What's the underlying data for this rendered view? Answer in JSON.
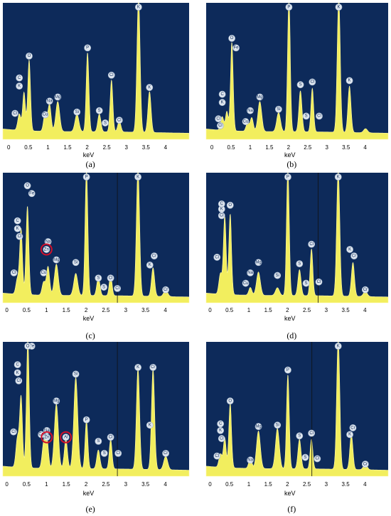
{
  "chart_data": [
    {
      "type": "area",
      "label": "(a)",
      "xlabel": "keV",
      "xlim": [
        -0.15,
        4.6
      ],
      "ylim": [
        0,
        100
      ],
      "xticks": [
        0,
        0.5,
        1,
        1.5,
        2,
        2.5,
        3,
        3.5,
        4
      ],
      "xtick_labels": [
        "0",
        "0.5",
        "1",
        "1.5",
        "2",
        "2.5",
        "3",
        "3.5",
        "4"
      ],
      "marker": null,
      "peaks": [
        {
          "x": 0.27,
          "h": 12,
          "w": 0.04
        },
        {
          "x": 0.39,
          "h": 28,
          "w": 0.035
        },
        {
          "x": 0.52,
          "h": 52,
          "w": 0.035
        },
        {
          "x": 0.93,
          "h": 14,
          "w": 0.04
        },
        {
          "x": 1.04,
          "h": 20,
          "w": 0.04
        },
        {
          "x": 1.25,
          "h": 22,
          "w": 0.05
        },
        {
          "x": 1.74,
          "h": 13,
          "w": 0.05
        },
        {
          "x": 2.01,
          "h": 58,
          "w": 0.035
        },
        {
          "x": 2.31,
          "h": 13,
          "w": 0.04
        },
        {
          "x": 2.62,
          "h": 38,
          "w": 0.035
        },
        {
          "x": 2.82,
          "h": 8,
          "w": 0.04
        },
        {
          "x": 3.31,
          "h": 99,
          "w": 0.04
        },
        {
          "x": 3.59,
          "h": 30,
          "w": 0.04
        }
      ],
      "labels": [
        {
          "text": "O",
          "x": 0.52,
          "v": 61
        },
        {
          "text": "C",
          "x": 0.27,
          "v": 45
        },
        {
          "text": "K",
          "x": 0.27,
          "v": 39
        },
        {
          "text": "Cl",
          "x": 0.16,
          "v": 19
        },
        {
          "text": "Na",
          "x": 1.04,
          "v": 28
        },
        {
          "text": "Mg",
          "x": 1.25,
          "v": 31
        },
        {
          "text": "Cu",
          "x": 0.93,
          "v": 18
        },
        {
          "text": "Si",
          "x": 1.74,
          "v": 20
        },
        {
          "text": "P",
          "x": 2.01,
          "v": 67
        },
        {
          "text": "Cl",
          "x": 2.62,
          "v": 47
        },
        {
          "text": "S",
          "x": 2.31,
          "v": 21
        },
        {
          "text": "S",
          "x": 2.46,
          "v": 12
        },
        {
          "text": "Cl",
          "x": 2.82,
          "v": 14
        },
        {
          "text": "K",
          "x": 3.31,
          "v": 109
        },
        {
          "text": "K",
          "x": 3.59,
          "v": 38
        }
      ],
      "rings": []
    },
    {
      "type": "area",
      "label": "(b)",
      "xlabel": "keV",
      "xlim": [
        -0.15,
        4.6
      ],
      "ylim": [
        0,
        100
      ],
      "xticks": [
        0,
        0.5,
        1,
        1.5,
        2,
        2.5,
        3,
        3.5,
        4
      ],
      "xtick_labels": [
        "0",
        "0.5",
        "1",
        "1.5",
        "2",
        "2.5",
        "3",
        "3.5",
        "4"
      ],
      "marker": null,
      "peaks": [
        {
          "x": 0.27,
          "h": 10,
          "w": 0.04
        },
        {
          "x": 0.39,
          "h": 14,
          "w": 0.035
        },
        {
          "x": 0.52,
          "h": 65,
          "w": 0.035
        },
        {
          "x": 0.93,
          "h": 6,
          "w": 0.04
        },
        {
          "x": 1.04,
          "h": 10,
          "w": 0.04
        },
        {
          "x": 1.25,
          "h": 22,
          "w": 0.05
        },
        {
          "x": 1.74,
          "h": 14,
          "w": 0.05
        },
        {
          "x": 2.01,
          "h": 99,
          "w": 0.035
        },
        {
          "x": 2.31,
          "h": 30,
          "w": 0.04
        },
        {
          "x": 2.62,
          "h": 32,
          "w": 0.035
        },
        {
          "x": 3.31,
          "h": 99,
          "w": 0.04
        },
        {
          "x": 3.59,
          "h": 34,
          "w": 0.04
        },
        {
          "x": 4.01,
          "h": 3,
          "w": 0.05
        }
      ],
      "labels": [
        {
          "text": "O",
          "x": 0.52,
          "v": 74
        },
        {
          "text": "Fe",
          "x": 0.63,
          "v": 67
        },
        {
          "text": "C",
          "x": 0.27,
          "v": 33
        },
        {
          "text": "K",
          "x": 0.27,
          "v": 27
        },
        {
          "text": "Cl",
          "x": 0.17,
          "v": 15
        },
        {
          "text": "Cl",
          "x": 0.22,
          "v": 10
        },
        {
          "text": "Na",
          "x": 1.0,
          "v": 21
        },
        {
          "text": "Cu",
          "x": 0.88,
          "v": 13
        },
        {
          "text": "Mg",
          "x": 1.25,
          "v": 31
        },
        {
          "text": "Si",
          "x": 1.74,
          "v": 22
        },
        {
          "text": "P",
          "x": 2.01,
          "v": 108
        },
        {
          "text": "S",
          "x": 2.31,
          "v": 40
        },
        {
          "text": "Cl",
          "x": 2.62,
          "v": 42
        },
        {
          "text": "S",
          "x": 2.46,
          "v": 17
        },
        {
          "text": "Cl",
          "x": 2.8,
          "v": 17
        },
        {
          "text": "K",
          "x": 3.31,
          "v": 108
        },
        {
          "text": "K",
          "x": 3.59,
          "v": 43
        }
      ],
      "rings": []
    },
    {
      "type": "area",
      "label": "(c)",
      "xlabel": "keV",
      "xlim": [
        -0.1,
        4.6
      ],
      "ylim": [
        0,
        100
      ],
      "xticks": [
        0,
        0.5,
        1,
        1.5,
        2,
        2.5,
        3,
        3.5,
        4
      ],
      "xtick_labels": [
        "0",
        "0.5",
        "1",
        "1.5",
        "2",
        "2.5",
        "3",
        "3.5",
        "4"
      ],
      "marker": 2.79,
      "peaks": [
        {
          "x": 0.27,
          "h": 12,
          "w": 0.04
        },
        {
          "x": 0.36,
          "h": 50,
          "w": 0.035
        },
        {
          "x": 0.52,
          "h": 68,
          "w": 0.035
        },
        {
          "x": 0.93,
          "h": 10,
          "w": 0.04
        },
        {
          "x": 1.04,
          "h": 22,
          "w": 0.04
        },
        {
          "x": 1.25,
          "h": 24,
          "w": 0.05
        },
        {
          "x": 1.74,
          "h": 17,
          "w": 0.05
        },
        {
          "x": 2.01,
          "h": 98,
          "w": 0.035
        },
        {
          "x": 2.31,
          "h": 14,
          "w": 0.04
        },
        {
          "x": 2.62,
          "h": 16,
          "w": 0.035
        },
        {
          "x": 3.31,
          "h": 98,
          "w": 0.04
        },
        {
          "x": 3.69,
          "h": 22,
          "w": 0.04
        },
        {
          "x": 4.01,
          "h": 5,
          "w": 0.05
        }
      ],
      "labels": [
        {
          "text": "O",
          "x": 0.52,
          "v": 90
        },
        {
          "text": "Fe",
          "x": 0.63,
          "v": 84
        },
        {
          "text": "C",
          "x": 0.27,
          "v": 63
        },
        {
          "text": "K",
          "x": 0.27,
          "v": 57
        },
        {
          "text": "Cl",
          "x": 0.32,
          "v": 51
        },
        {
          "text": "Na",
          "x": 1.04,
          "v": 47
        },
        {
          "text": "Zn",
          "x": 1.0,
          "v": 41
        },
        {
          "text": "Cu",
          "x": 0.93,
          "v": 23
        },
        {
          "text": "Cl",
          "x": 0.18,
          "v": 23
        },
        {
          "text": "Mg",
          "x": 1.25,
          "v": 33
        },
        {
          "text": "Si",
          "x": 1.74,
          "v": 31
        },
        {
          "text": "P",
          "x": 2.01,
          "v": 108
        },
        {
          "text": "S",
          "x": 2.31,
          "v": 19
        },
        {
          "text": "Cl",
          "x": 2.62,
          "v": 19
        },
        {
          "text": "S",
          "x": 2.45,
          "v": 12
        },
        {
          "text": "Cl",
          "x": 2.79,
          "v": 11
        },
        {
          "text": "K",
          "x": 3.31,
          "v": 108
        },
        {
          "text": "Cr",
          "x": 3.72,
          "v": 36
        },
        {
          "text": "K",
          "x": 3.61,
          "v": 29
        },
        {
          "text": "Cr",
          "x": 4.01,
          "v": 10
        }
      ],
      "rings": [
        {
          "x": 1.0,
          "v": 41
        }
      ]
    },
    {
      "type": "area",
      "label": "(d)",
      "xlabel": "keV",
      "xlim": [
        -0.1,
        4.6
      ],
      "ylim": [
        0,
        100
      ],
      "xticks": [
        0,
        0.5,
        1,
        1.5,
        2,
        2.5,
        3,
        3.5,
        4
      ],
      "xtick_labels": [
        "0",
        "0.5",
        "1",
        "1.5",
        "2",
        "2.5",
        "3",
        "3.5",
        "4"
      ],
      "marker": 2.79,
      "peaks": [
        {
          "x": 0.27,
          "h": 16,
          "w": 0.04
        },
        {
          "x": 0.38,
          "h": 60,
          "w": 0.035
        },
        {
          "x": 0.52,
          "h": 62,
          "w": 0.035
        },
        {
          "x": 1.04,
          "h": 6,
          "w": 0.04
        },
        {
          "x": 1.25,
          "h": 18,
          "w": 0.05
        },
        {
          "x": 1.74,
          "h": 6,
          "w": 0.05
        },
        {
          "x": 2.01,
          "h": 98,
          "w": 0.035
        },
        {
          "x": 2.31,
          "h": 20,
          "w": 0.04
        },
        {
          "x": 2.62,
          "h": 36,
          "w": 0.035
        },
        {
          "x": 3.31,
          "h": 98,
          "w": 0.04
        },
        {
          "x": 3.69,
          "h": 26,
          "w": 0.04
        },
        {
          "x": 4.01,
          "h": 4,
          "w": 0.05
        }
      ],
      "labels": [
        {
          "text": "C",
          "x": 0.3,
          "v": 76
        },
        {
          "text": "K",
          "x": 0.3,
          "v": 72
        },
        {
          "text": "Cl",
          "x": 0.3,
          "v": 67
        },
        {
          "text": "O",
          "x": 0.52,
          "v": 75
        },
        {
          "text": "Cl",
          "x": 0.18,
          "v": 35
        },
        {
          "text": "Na",
          "x": 1.04,
          "v": 23
        },
        {
          "text": "Cu",
          "x": 0.92,
          "v": 15
        },
        {
          "text": "Mg",
          "x": 1.25,
          "v": 31
        },
        {
          "text": "Si",
          "x": 1.74,
          "v": 21
        },
        {
          "text": "P",
          "x": 2.01,
          "v": 109
        },
        {
          "text": "S",
          "x": 2.31,
          "v": 30
        },
        {
          "text": "Cl",
          "x": 2.62,
          "v": 45
        },
        {
          "text": "S",
          "x": 2.48,
          "v": 15
        },
        {
          "text": "Cl",
          "x": 2.81,
          "v": 16
        },
        {
          "text": "K",
          "x": 3.31,
          "v": 109
        },
        {
          "text": "K",
          "x": 3.61,
          "v": 41
        },
        {
          "text": "Cr",
          "x": 3.72,
          "v": 36
        },
        {
          "text": "Cr",
          "x": 4.01,
          "v": 10
        }
      ],
      "rings": []
    },
    {
      "type": "area",
      "label": "(e)",
      "xlabel": "keV",
      "xlim": [
        -0.1,
        4.6
      ],
      "ylim": [
        0,
        100
      ],
      "xticks": [
        0,
        0.5,
        1,
        1.5,
        2,
        2.5,
        3,
        3.5,
        4
      ],
      "xtick_labels": [
        "0",
        "0.5",
        "1",
        "1.5",
        "2",
        "2.5",
        "3",
        "3.5",
        "4"
      ],
      "marker": 2.79,
      "peaks": [
        {
          "x": 0.27,
          "h": 22,
          "w": 0.04
        },
        {
          "x": 0.36,
          "h": 52,
          "w": 0.035
        },
        {
          "x": 0.53,
          "h": 96,
          "w": 0.035
        },
        {
          "x": 0.93,
          "h": 18,
          "w": 0.04
        },
        {
          "x": 1.01,
          "h": 22,
          "w": 0.04
        },
        {
          "x": 1.25,
          "h": 48,
          "w": 0.05
        },
        {
          "x": 1.49,
          "h": 22,
          "w": 0.04
        },
        {
          "x": 1.74,
          "h": 68,
          "w": 0.05
        },
        {
          "x": 2.01,
          "h": 36,
          "w": 0.035
        },
        {
          "x": 2.31,
          "h": 14,
          "w": 0.04
        },
        {
          "x": 2.62,
          "h": 22,
          "w": 0.035
        },
        {
          "x": 3.31,
          "h": 75,
          "w": 0.04
        },
        {
          "x": 3.69,
          "h": 75,
          "w": 0.04
        },
        {
          "x": 4.01,
          "h": 10,
          "w": 0.05
        }
      ],
      "labels": [
        {
          "text": "Fe",
          "x": 0.63,
          "v": 103
        },
        {
          "text": "O",
          "x": 0.53,
          "v": 97
        },
        {
          "text": "C",
          "x": 0.27,
          "v": 83
        },
        {
          "text": "K",
          "x": 0.27,
          "v": 77
        },
        {
          "text": "Cl",
          "x": 0.3,
          "v": 71
        },
        {
          "text": "Na",
          "x": 1.01,
          "v": 34
        },
        {
          "text": "Zn",
          "x": 1.01,
          "v": 29
        },
        {
          "text": "Al",
          "x": 1.49,
          "v": 29
        },
        {
          "text": "Cu",
          "x": 0.87,
          "v": 31
        },
        {
          "text": "Cl",
          "x": 0.17,
          "v": 33
        },
        {
          "text": "Mg",
          "x": 1.25,
          "v": 56
        },
        {
          "text": "Si",
          "x": 1.74,
          "v": 76
        },
        {
          "text": "P",
          "x": 2.01,
          "v": 42
        },
        {
          "text": "S",
          "x": 2.31,
          "v": 26
        },
        {
          "text": "Cl",
          "x": 2.62,
          "v": 29
        },
        {
          "text": "S",
          "x": 2.46,
          "v": 17
        },
        {
          "text": "Cl",
          "x": 2.81,
          "v": 17
        },
        {
          "text": "K",
          "x": 3.31,
          "v": 81
        },
        {
          "text": "Cr",
          "x": 3.69,
          "v": 81
        },
        {
          "text": "K",
          "x": 3.61,
          "v": 38
        },
        {
          "text": "Cr",
          "x": 4.01,
          "v": 17
        }
      ],
      "rings": [
        {
          "x": 1.01,
          "v": 29
        },
        {
          "x": 1.49,
          "v": 29
        }
      ]
    },
    {
      "type": "area",
      "label": "(f)",
      "xlabel": "keV",
      "xlim": [
        -0.1,
        4.6
      ],
      "ylim": [
        0,
        100
      ],
      "xticks": [
        0,
        0.5,
        1,
        1.5,
        2,
        2.5,
        3,
        3.5,
        4
      ],
      "xtick_labels": [
        "0",
        "0.5",
        "1",
        "1.5",
        "2",
        "2.5",
        "3",
        "3.5",
        "4"
      ],
      "marker": 2.63,
      "peaks": [
        {
          "x": 0.27,
          "h": 10,
          "w": 0.04
        },
        {
          "x": 0.38,
          "h": 22,
          "w": 0.035
        },
        {
          "x": 0.52,
          "h": 48,
          "w": 0.035
        },
        {
          "x": 1.04,
          "h": 8,
          "w": 0.04
        },
        {
          "x": 1.25,
          "h": 28,
          "w": 0.05
        },
        {
          "x": 1.74,
          "h": 30,
          "w": 0.05
        },
        {
          "x": 2.01,
          "h": 70,
          "w": 0.035
        },
        {
          "x": 2.31,
          "h": 22,
          "w": 0.04
        },
        {
          "x": 2.62,
          "h": 22,
          "w": 0.035
        },
        {
          "x": 3.31,
          "h": 98,
          "w": 0.04
        },
        {
          "x": 3.65,
          "h": 26,
          "w": 0.04
        },
        {
          "x": 4.01,
          "h": 4,
          "w": 0.05
        }
      ],
      "labels": [
        {
          "text": "O",
          "x": 0.52,
          "v": 56
        },
        {
          "text": "C",
          "x": 0.27,
          "v": 39
        },
        {
          "text": "K",
          "x": 0.27,
          "v": 34
        },
        {
          "text": "Cl",
          "x": 0.3,
          "v": 28
        },
        {
          "text": "Cl",
          "x": 0.18,
          "v": 15
        },
        {
          "text": "Na",
          "x": 1.04,
          "v": 12
        },
        {
          "text": "Mg",
          "x": 1.25,
          "v": 37
        },
        {
          "text": "Si",
          "x": 1.74,
          "v": 38
        },
        {
          "text": "P",
          "x": 2.01,
          "v": 79
        },
        {
          "text": "S",
          "x": 2.31,
          "v": 30
        },
        {
          "text": "Cl",
          "x": 2.62,
          "v": 32
        },
        {
          "text": "S",
          "x": 2.46,
          "v": 14
        },
        {
          "text": "Cl",
          "x": 2.77,
          "v": 13
        },
        {
          "text": "K",
          "x": 3.31,
          "v": 108
        },
        {
          "text": "Cr",
          "x": 3.69,
          "v": 36
        },
        {
          "text": "K",
          "x": 3.61,
          "v": 31
        },
        {
          "text": "Cr",
          "x": 4.01,
          "v": 9
        }
      ],
      "rings": []
    }
  ]
}
